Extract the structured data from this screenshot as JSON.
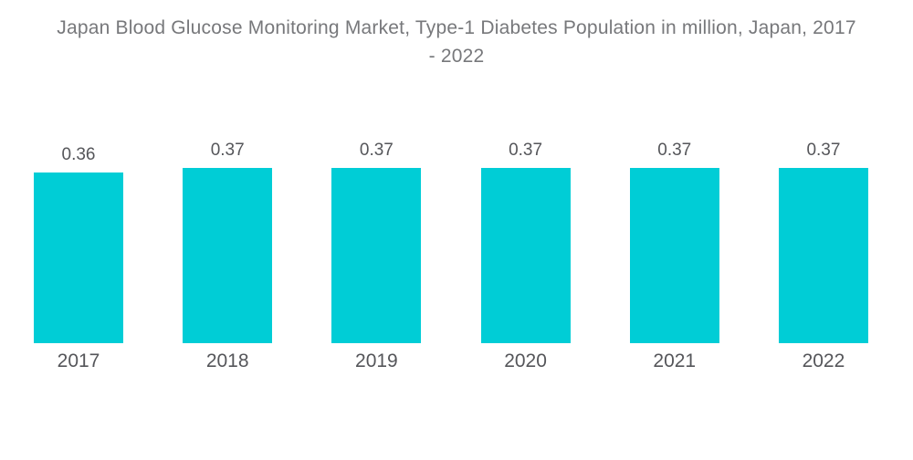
{
  "title_lines": [
    "Japan Blood Glucose Monitoring Market, Type-1 Diabetes Population in million, Japan, 2017",
    "- 2022"
  ],
  "chart_data": {
    "type": "bar",
    "title": "Japan Blood Glucose Monitoring Market, Type-1 Diabetes Population in million, Japan, 2017 - 2022",
    "categories": [
      "2017",
      "2018",
      "2019",
      "2020",
      "2021",
      "2022"
    ],
    "values": [
      0.36,
      0.37,
      0.37,
      0.37,
      0.37,
      0.37
    ],
    "xlabel": "",
    "ylabel": "",
    "ylim": [
      0,
      0.37
    ],
    "grid": false,
    "legend": "none",
    "data_labels": "above-bars",
    "colors": {
      "bar": "#00cdd6",
      "title_text": "#77787b",
      "label_text": "#55565a",
      "background": "#ffffff"
    }
  }
}
